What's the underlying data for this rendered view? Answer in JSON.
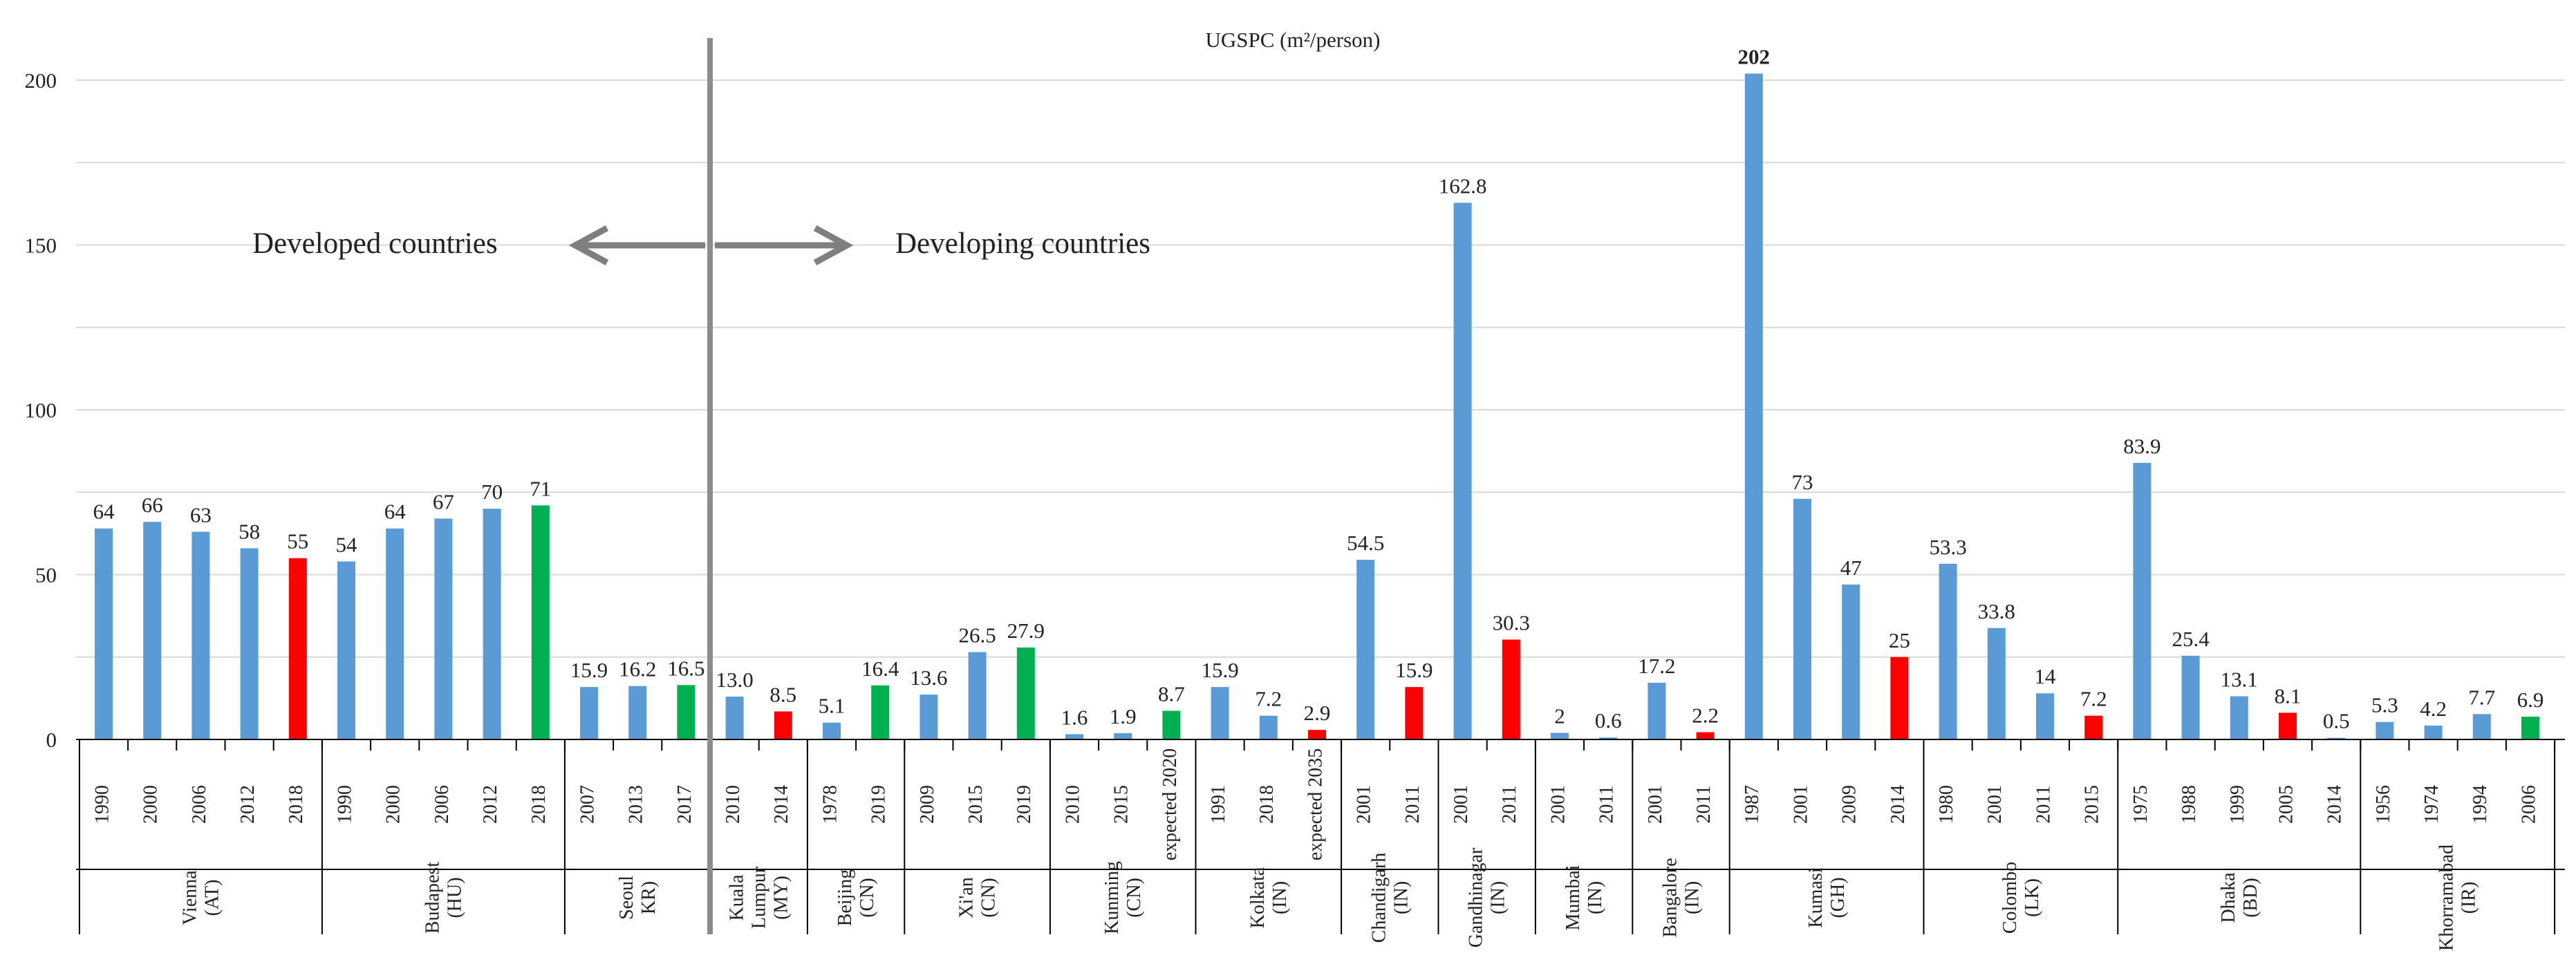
{
  "chart_data": {
    "type": "bar",
    "title": "UGSPC (m²/person)",
    "xlabel": "",
    "ylabel": "",
    "ylim": [
      0,
      200
    ],
    "yticks": [
      0,
      50,
      100,
      150,
      200
    ],
    "colors": {
      "historic": "#5b9bd5",
      "decline": "#ff0000",
      "target_or_increase": "#00b050",
      "grid": "#d9d9d9",
      "axis": "#000000",
      "divider": "#8c8c8c",
      "arrow": "#7f7f7f"
    },
    "annotations": {
      "developed": "Developed countries",
      "developing": "Developing countries"
    },
    "groups": [
      {
        "city": "Vienna",
        "code": "(AT)",
        "bars": [
          {
            "year": "1990",
            "value": 64,
            "label": "64",
            "color": "historic"
          },
          {
            "year": "2000",
            "value": 66,
            "label": "66",
            "color": "historic"
          },
          {
            "year": "2006",
            "value": 63,
            "label": "63",
            "color": "historic"
          },
          {
            "year": "2012",
            "value": 58,
            "label": "58",
            "color": "historic"
          },
          {
            "year": "2018",
            "value": 55,
            "label": "55",
            "color": "decline"
          }
        ]
      },
      {
        "city": "Budapest",
        "code": "(HU)",
        "bars": [
          {
            "year": "1990",
            "value": 54,
            "label": "54",
            "color": "historic"
          },
          {
            "year": "2000",
            "value": 64,
            "label": "64",
            "color": "historic"
          },
          {
            "year": "2006",
            "value": 67,
            "label": "67",
            "color": "historic"
          },
          {
            "year": "2012",
            "value": 70,
            "label": "70",
            "color": "historic"
          },
          {
            "year": "2018",
            "value": 71,
            "label": "71",
            "color": "target_or_increase"
          }
        ]
      },
      {
        "city": "Seoul",
        "code": "KR)",
        "bars": [
          {
            "year": "2007",
            "value": 15.9,
            "label": "15.9",
            "color": "historic"
          },
          {
            "year": "2013",
            "value": 16.2,
            "label": "16.2",
            "color": "historic"
          },
          {
            "year": "2017",
            "value": 16.5,
            "label": "16.5",
            "color": "target_or_increase"
          }
        ]
      },
      {
        "city": "Kuala",
        "city2": "Lumpur",
        "code": "(MY)",
        "bars": [
          {
            "year": "2010",
            "value": 13.0,
            "label": "13.0",
            "color": "historic"
          },
          {
            "year": "2014",
            "value": 8.5,
            "label": "8.5",
            "color": "decline"
          }
        ]
      },
      {
        "city": "Beijing",
        "code": "(CN)",
        "bars": [
          {
            "year": "1978",
            "value": 5.1,
            "label": "5.1",
            "color": "historic"
          },
          {
            "year": "2019",
            "value": 16.4,
            "label": "16.4",
            "color": "target_or_increase"
          }
        ]
      },
      {
        "city": "Xi'an",
        "code": "(CN)",
        "bars": [
          {
            "year": "2009",
            "value": 13.6,
            "label": "13.6",
            "color": "historic"
          },
          {
            "year": "2015",
            "value": 26.5,
            "label": "26.5",
            "color": "historic"
          },
          {
            "year": "2019",
            "value": 27.9,
            "label": "27.9",
            "color": "target_or_increase"
          }
        ]
      },
      {
        "city": "Kunming",
        "code": "(CN)",
        "bars": [
          {
            "year": "2010",
            "value": 1.6,
            "label": "1.6",
            "color": "historic"
          },
          {
            "year": "2015",
            "value": 1.9,
            "label": "1.9",
            "color": "historic"
          },
          {
            "year": "expected 2020",
            "value": 8.7,
            "label": "8.7",
            "color": "target_or_increase"
          }
        ]
      },
      {
        "city": "Kolkata",
        "code": "(IN)",
        "bars": [
          {
            "year": "1991",
            "value": 15.9,
            "label": "15.9",
            "color": "historic"
          },
          {
            "year": "2018",
            "value": 7.2,
            "label": "7.2",
            "color": "historic"
          },
          {
            "year": "expected 2035",
            "value": 2.9,
            "label": "2.9",
            "color": "decline"
          }
        ]
      },
      {
        "city": "Chandigarh",
        "code": "(IN)",
        "bars": [
          {
            "year": "2001",
            "value": 54.5,
            "label": "54.5",
            "color": "historic"
          },
          {
            "year": "2011",
            "value": 15.9,
            "label": "15.9",
            "color": "decline"
          }
        ]
      },
      {
        "city": "Gandhinagar",
        "code": "(IN)",
        "bars": [
          {
            "year": "2001",
            "value": 162.8,
            "label": "162.8",
            "color": "historic"
          },
          {
            "year": "2011",
            "value": 30.3,
            "label": "30.3",
            "color": "decline"
          }
        ]
      },
      {
        "city": "Mumbai",
        "code": "(IN)",
        "bars": [
          {
            "year": "2001",
            "value": 2,
            "label": "2",
            "color": "historic"
          },
          {
            "year": "2011",
            "value": 0.6,
            "label": "0.6",
            "color": "historic"
          }
        ]
      },
      {
        "city": "Bangalore",
        "code": "(IN)",
        "bars": [
          {
            "year": "2001",
            "value": 17.2,
            "label": "17.2",
            "color": "historic"
          },
          {
            "year": "2011",
            "value": 2.2,
            "label": "2.2",
            "color": "decline"
          }
        ]
      },
      {
        "city": "Kumasi",
        "code": "(GH)",
        "bars": [
          {
            "year": "1987",
            "value": 202,
            "label": "202",
            "color": "historic",
            "bold": true
          },
          {
            "year": "2001",
            "value": 73,
            "label": "73",
            "color": "historic"
          },
          {
            "year": "2009",
            "value": 47,
            "label": "47",
            "color": "historic"
          },
          {
            "year": "2014",
            "value": 25,
            "label": "25",
            "color": "decline"
          }
        ]
      },
      {
        "city": "Colombo",
        "code": "(LK)",
        "bars": [
          {
            "year": "1980",
            "value": 53.3,
            "label": "53.3",
            "color": "historic"
          },
          {
            "year": "2001",
            "value": 33.8,
            "label": "33.8",
            "color": "historic"
          },
          {
            "year": "2011",
            "value": 14,
            "label": "14",
            "color": "historic"
          },
          {
            "year": "2015",
            "value": 7.2,
            "label": "7.2",
            "color": "decline"
          }
        ]
      },
      {
        "city": "Dhaka",
        "code": "(BD)",
        "bars": [
          {
            "year": "1975",
            "value": 83.9,
            "label": "83.9",
            "color": "historic"
          },
          {
            "year": "1988",
            "value": 25.4,
            "label": "25.4",
            "color": "historic"
          },
          {
            "year": "1999",
            "value": 13.1,
            "label": "13.1",
            "color": "historic"
          },
          {
            "year": "2005",
            "value": 8.1,
            "label": "8.1",
            "color": "decline"
          },
          {
            "year": "2014",
            "value": 0.5,
            "label": "0.5",
            "color": "historic"
          }
        ]
      },
      {
        "city": "Khorramabad",
        "code": "(IR)",
        "bars": [
          {
            "year": "1956",
            "value": 5.3,
            "label": "5.3",
            "color": "historic"
          },
          {
            "year": "1974",
            "value": 4.2,
            "label": "4.2",
            "color": "historic"
          },
          {
            "year": "1994",
            "value": 7.7,
            "label": "7.7",
            "color": "historic"
          },
          {
            "year": "2006",
            "value": 6.9,
            "label": "6.9",
            "color": "target_or_increase"
          }
        ]
      }
    ]
  }
}
